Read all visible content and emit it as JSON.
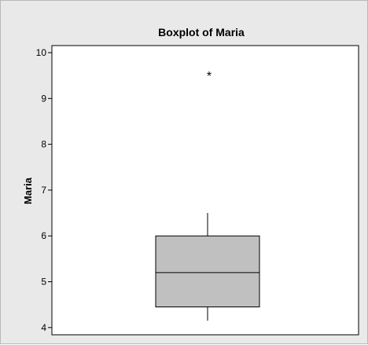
{
  "chart_data": {
    "type": "boxplot",
    "title": "Boxplot of Maria",
    "xlabel": "",
    "ylabel": "Maria",
    "ylim": [
      3.9,
      10.05
    ],
    "yticks": [
      4,
      5,
      6,
      7,
      8,
      9,
      10
    ],
    "grid": false,
    "series": [
      {
        "whisker_low": 4.15,
        "q1": 4.45,
        "median": 5.2,
        "q3": 6.0,
        "whisker_high": 6.5,
        "outliers": [
          9.55
        ]
      }
    ],
    "colors": {
      "box_fill": "#c0c0c0",
      "stroke": "#000000",
      "background": "#e9e9e9",
      "plot_area": "#ffffff"
    },
    "outlier_symbol": "*"
  }
}
